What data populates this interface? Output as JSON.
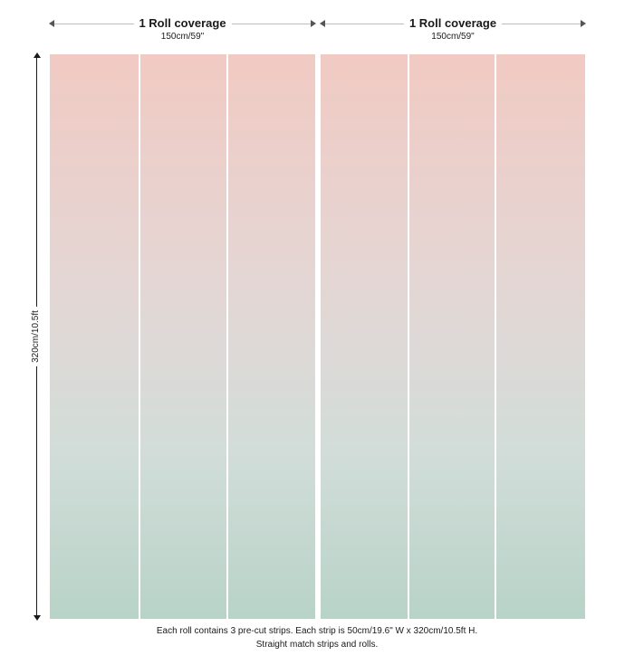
{
  "rolls": [
    {
      "title": "1 Roll coverage",
      "width": "150cm/59\""
    },
    {
      "title": "1 Roll coverage",
      "width": "150cm/59\""
    }
  ],
  "height_label": "320cm/10.5ft",
  "strips_per_roll": 3,
  "gradient_colors": {
    "top": "#f1cac3",
    "middle": "#e4d6d4",
    "bottom": "#b8d3c8"
  },
  "notes": {
    "line1": "Each roll contains 3 pre-cut strips.  Each strip is 50cm/19.6\" W x 320cm/10.5ft H.",
    "line2": "Straight match strips and rolls."
  }
}
